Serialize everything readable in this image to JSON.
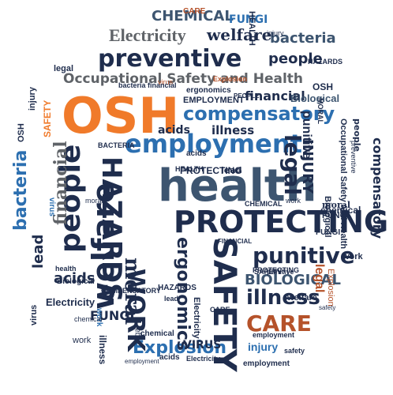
{
  "palette": {
    "navy": "#1f2d4d",
    "steel": "#3d5570",
    "blue": "#2c6fb0",
    "gray": "#5f6368",
    "rust": "#b5522a",
    "orange": "#f07a2a"
  },
  "words": [
    {
      "id": "word-osh-main",
      "text": "OSH"
    },
    {
      "id": "word-health-main",
      "text": "health"
    },
    {
      "id": "word-protecting-main",
      "text": "PROTECTING"
    },
    {
      "id": "word-preventive-main",
      "text": "preventive"
    },
    {
      "id": "word-employment-main",
      "text": "employment"
    },
    {
      "id": "word-compensatory-main",
      "text": "compensatory"
    },
    {
      "id": "word-occupational-safety-health-main",
      "text": "Occupational Safety and Health"
    },
    {
      "id": "word-welfare-main",
      "text": "welfare"
    },
    {
      "id": "word-people-main",
      "text": "people"
    },
    {
      "id": "word-financial-main",
      "text": "financial"
    },
    {
      "id": "word-bacteria-left",
      "text": "bacteria"
    },
    {
      "id": "word-hazards-main",
      "text": "HAZARDS"
    },
    {
      "id": "word-safety-main",
      "text": "SAFETY"
    },
    {
      "id": "word-punitive-main",
      "text": "punitive"
    },
    {
      "id": "word-biological-main",
      "text": "BIOLOGICAL"
    },
    {
      "id": "word-illness-main",
      "text": "illness"
    },
    {
      "id": "word-care-main",
      "text": "CARE"
    },
    {
      "id": "word-explosion-main",
      "text": "Explosion"
    },
    {
      "id": "word-electricity-top",
      "text": "Electricity"
    },
    {
      "id": "word-welfare-top",
      "text": "welfare"
    },
    {
      "id": "word-chemical-top",
      "text": "CHEMICAL"
    },
    {
      "id": "word-fungi-top",
      "text": "FUNGI"
    },
    {
      "id": "word-people-top",
      "text": "people"
    },
    {
      "id": "word-bacteria-top",
      "text": "bacteria"
    },
    {
      "id": "word-work-main",
      "text": "WORK"
    },
    {
      "id": "word-moral-main",
      "text": "moral"
    },
    {
      "id": "word-ergonomics-main",
      "text": "ergonomics"
    },
    {
      "id": "word-injury-main",
      "text": "INJURY"
    },
    {
      "id": "word-legal-right",
      "text": "legal"
    },
    {
      "id": "word-compensatory-right",
      "text": "compensatory"
    },
    {
      "id": "word-occupational-safety-health-right",
      "text": "Occupational Safety and Health"
    },
    {
      "id": "word-lead-left",
      "text": "lead"
    },
    {
      "id": "word-acids-left",
      "text": "acids"
    },
    {
      "id": "word-electricity-left",
      "text": "Electricity"
    },
    {
      "id": "word-fungi-bottom",
      "text": "FUNGI"
    },
    {
      "id": "word-virus-bottom",
      "text": "VIRUS"
    },
    {
      "id": "word-injury-bottom",
      "text": "injury"
    },
    {
      "id": "word-legal-bottom",
      "text": "legal"
    },
    {
      "id": "word-acids-mid",
      "text": "acids"
    },
    {
      "id": "word-illness-mid",
      "text": "illness"
    },
    {
      "id": "word-financial-mid",
      "text": "financial"
    },
    {
      "id": "word-biological-top",
      "text": "Biological"
    },
    {
      "id": "word-employment-small",
      "text": "EMPLOYMENT"
    },
    {
      "id": "word-people-small",
      "text": "PEOPLE"
    },
    {
      "id": "word-osh-small",
      "text": "OSH"
    },
    {
      "id": "word-lead-mid",
      "text": "lead"
    },
    {
      "id": "word-protecting-small",
      "text": "PROTECTING"
    },
    {
      "id": "word-chemical-right",
      "text": "chemical"
    },
    {
      "id": "word-biological-right",
      "text": "Biological"
    },
    {
      "id": "word-explosion-right",
      "text": "Explosion"
    },
    {
      "id": "word-work-right",
      "text": "work"
    },
    {
      "id": "word-welfare-bottom",
      "text": "welfare"
    },
    {
      "id": "word-safety-small",
      "text": "SAFETY"
    },
    {
      "id": "word-punitive-small",
      "text": "punitive"
    },
    {
      "id": "word-moral-right",
      "text": "moral"
    },
    {
      "id": "word-fungi-right",
      "text": "FUNGI"
    },
    {
      "id": "word-virus-left",
      "text": "virus"
    },
    {
      "id": "word-work-left",
      "text": "work"
    },
    {
      "id": "word-osh-left",
      "text": "OSH"
    },
    {
      "id": "word-safety-left",
      "text": "SAFETY"
    },
    {
      "id": "word-injury-left",
      "text": "injury"
    },
    {
      "id": "word-care-top",
      "text": "CARE"
    },
    {
      "id": "word-legal-top",
      "text": "legal"
    },
    {
      "id": "word-injury-top",
      "text": "injury"
    },
    {
      "id": "word-hazards-top",
      "text": "HAZARDS"
    },
    {
      "id": "word-chemical-bottom",
      "text": "chemical"
    },
    {
      "id": "word-employment-bottom",
      "text": "employment"
    },
    {
      "id": "word-acids-bottom",
      "text": "acids"
    },
    {
      "id": "word-preventive-right",
      "text": "preventive"
    },
    {
      "id": "word-ergonomics-top",
      "text": "ergonomics"
    },
    {
      "id": "word-health-top",
      "text": "HEALTH"
    },
    {
      "id": "word-bacteria-mid",
      "text": "BACTERIA"
    },
    {
      "id": "word-virus-top",
      "text": "virus"
    },
    {
      "id": "word-legal-left",
      "text": "legal"
    },
    {
      "id": "word-electricity-mid",
      "text": "Electricity"
    },
    {
      "id": "word-care-small",
      "text": "CARE"
    },
    {
      "id": "word-work-mid",
      "text": "work"
    },
    {
      "id": "word-hazards-small",
      "text": "HAZARDS"
    },
    {
      "id": "word-protecting-mid",
      "text": "PROTECTING"
    },
    {
      "id": "word-explosion-top",
      "text": "Explosion"
    },
    {
      "id": "word-health-mid",
      "text": "HEALTH"
    },
    {
      "id": "word-chemical-mid",
      "text": "CHEMICAL"
    },
    {
      "id": "word-safety-right",
      "text": "safety"
    },
    {
      "id": "word-employment-right",
      "text": "employment"
    },
    {
      "id": "word-biological-bottom",
      "text": "Biological"
    },
    {
      "id": "word-lead-bottom",
      "text": "lead"
    },
    {
      "id": "word-compensatory-small",
      "text": "COMPENSATORY"
    },
    {
      "id": "word-people-right",
      "text": "people"
    },
    {
      "id": "word-illness-bottom",
      "text": "illness"
    },
    {
      "id": "word-electricity-bottom",
      "text": "Electricity"
    },
    {
      "id": "word-financial-small",
      "text": "FINANCIAL"
    },
    {
      "id": "word-virus-mid",
      "text": "virus"
    },
    {
      "id": "word-moral-small",
      "text": "MORAL"
    },
    {
      "id": "word-punitive-top",
      "text": "punitive"
    },
    {
      "id": "word-acids-top",
      "text": "acids"
    },
    {
      "id": "word-bacteria-small",
      "text": "bacteria financial"
    },
    {
      "id": "word-health-small",
      "text": "health"
    },
    {
      "id": "word-fungi-small",
      "text": "FUNGI"
    },
    {
      "id": "word-safety-small2",
      "text": "safety"
    },
    {
      "id": "word-employment-small2",
      "text": "employment"
    },
    {
      "id": "word-work-small",
      "text": "work"
    },
    {
      "id": "word-moral-small2",
      "text": "moral"
    },
    {
      "id": "word-chemical-small",
      "text": "chemical"
    }
  ]
}
